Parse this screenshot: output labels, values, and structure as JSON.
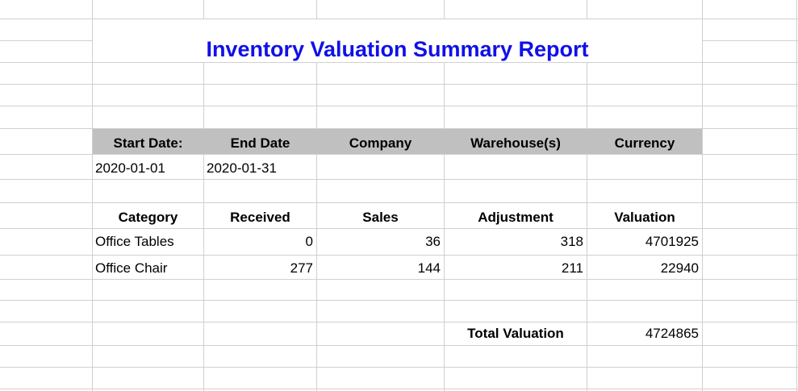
{
  "report": {
    "title": "Inventory Valuation Summary Report",
    "title_color": "#1010e8",
    "header_bg": "#c0c0c0"
  },
  "info_headers": [
    "Start Date:",
    "End Date",
    "Company",
    "Warehouse(s)",
    "Currency"
  ],
  "info_values": [
    "2020-01-01",
    "2020-01-31",
    "",
    "",
    ""
  ],
  "table_headers": [
    "Category",
    "Received",
    "Sales",
    "Adjustment",
    "Valuation"
  ],
  "rows": [
    {
      "category": "Office Tables",
      "received": "0",
      "sales": "36",
      "adjustment": "318",
      "valuation": "4701925"
    },
    {
      "category": "Office Chair",
      "received": "277",
      "sales": "144",
      "adjustment": "211",
      "valuation": "22940"
    }
  ],
  "total": {
    "label": "Total Valuation",
    "value": "4724865"
  }
}
